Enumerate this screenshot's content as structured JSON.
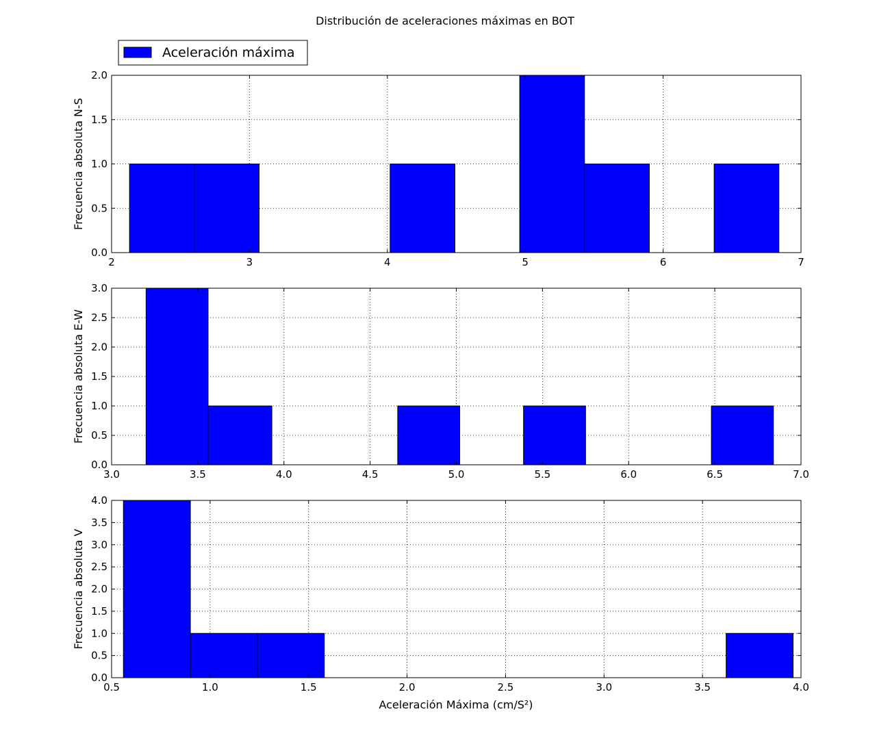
{
  "chart_data": {
    "title": "Distribución de aceleraciones máximas en BOT",
    "legend": {
      "label": "Aceleración máxima",
      "placement": "upper-left",
      "color": "#0000ff"
    },
    "grid": true,
    "bar_color": "#0000ff",
    "xlabel": "Aceleración Máxima (cm/S²)",
    "subplots": [
      {
        "type": "bar",
        "ylabel": "Frecuencia absoluta N-S",
        "xlim": [
          2,
          7
        ],
        "ylim": [
          0,
          2
        ],
        "xticks": [
          2,
          3,
          4,
          5,
          6,
          7
        ],
        "xtick_labels": [
          "2",
          "3",
          "4",
          "5",
          "6",
          "7"
        ],
        "yticks": [
          0,
          0.5,
          1,
          1.5,
          2
        ],
        "ytick_labels": [
          "0.0",
          "0.5",
          "1.0",
          "1.5",
          "2.0"
        ],
        "bins": [
          {
            "x0": 2.13,
            "x1": 2.6,
            "count": 1
          },
          {
            "x0": 2.6,
            "x1": 3.07,
            "count": 1
          },
          {
            "x0": 4.02,
            "x1": 4.49,
            "count": 1
          },
          {
            "x0": 4.96,
            "x1": 5.43,
            "count": 2
          },
          {
            "x0": 5.43,
            "x1": 5.9,
            "count": 1
          },
          {
            "x0": 6.37,
            "x1": 6.84,
            "count": 1
          }
        ]
      },
      {
        "type": "bar",
        "ylabel": "Frecuencia absoluta E-W",
        "xlim": [
          3,
          7
        ],
        "ylim": [
          0,
          3
        ],
        "xticks": [
          3,
          3.5,
          4,
          4.5,
          5,
          5.5,
          6,
          6.5,
          7
        ],
        "xtick_labels": [
          "3.0",
          "3.5",
          "4.0",
          "4.5",
          "5.0",
          "5.5",
          "6.0",
          "6.5",
          "7.0"
        ],
        "yticks": [
          0,
          0.5,
          1,
          1.5,
          2,
          2.5,
          3
        ],
        "ytick_labels": [
          "0.0",
          "0.5",
          "1.0",
          "1.5",
          "2.0",
          "2.5",
          "3.0"
        ],
        "bins": [
          {
            "x0": 3.2,
            "x1": 3.56,
            "count": 3
          },
          {
            "x0": 3.56,
            "x1": 3.93,
            "count": 1
          },
          {
            "x0": 4.66,
            "x1": 5.02,
            "count": 1
          },
          {
            "x0": 5.39,
            "x1": 5.75,
            "count": 1
          },
          {
            "x0": 6.48,
            "x1": 6.84,
            "count": 1
          }
        ]
      },
      {
        "type": "bar",
        "ylabel": "Frecuencia absoluta V",
        "xlim": [
          0.5,
          4
        ],
        "ylim": [
          0,
          4
        ],
        "xticks": [
          0.5,
          1,
          1.5,
          2,
          2.5,
          3,
          3.5,
          4
        ],
        "xtick_labels": [
          "0.5",
          "1.0",
          "1.5",
          "2.0",
          "2.5",
          "3.0",
          "3.5",
          "4.0"
        ],
        "yticks": [
          0,
          0.5,
          1,
          1.5,
          2,
          2.5,
          3,
          3.5,
          4
        ],
        "ytick_labels": [
          "0.0",
          "0.5",
          "1.0",
          "1.5",
          "2.0",
          "2.5",
          "3.0",
          "3.5",
          "4.0"
        ],
        "bins": [
          {
            "x0": 0.56,
            "x1": 0.9,
            "count": 4
          },
          {
            "x0": 0.9,
            "x1": 1.24,
            "count": 1
          },
          {
            "x0": 1.24,
            "x1": 1.58,
            "count": 1
          },
          {
            "x0": 3.62,
            "x1": 3.96,
            "count": 1
          }
        ]
      }
    ]
  }
}
